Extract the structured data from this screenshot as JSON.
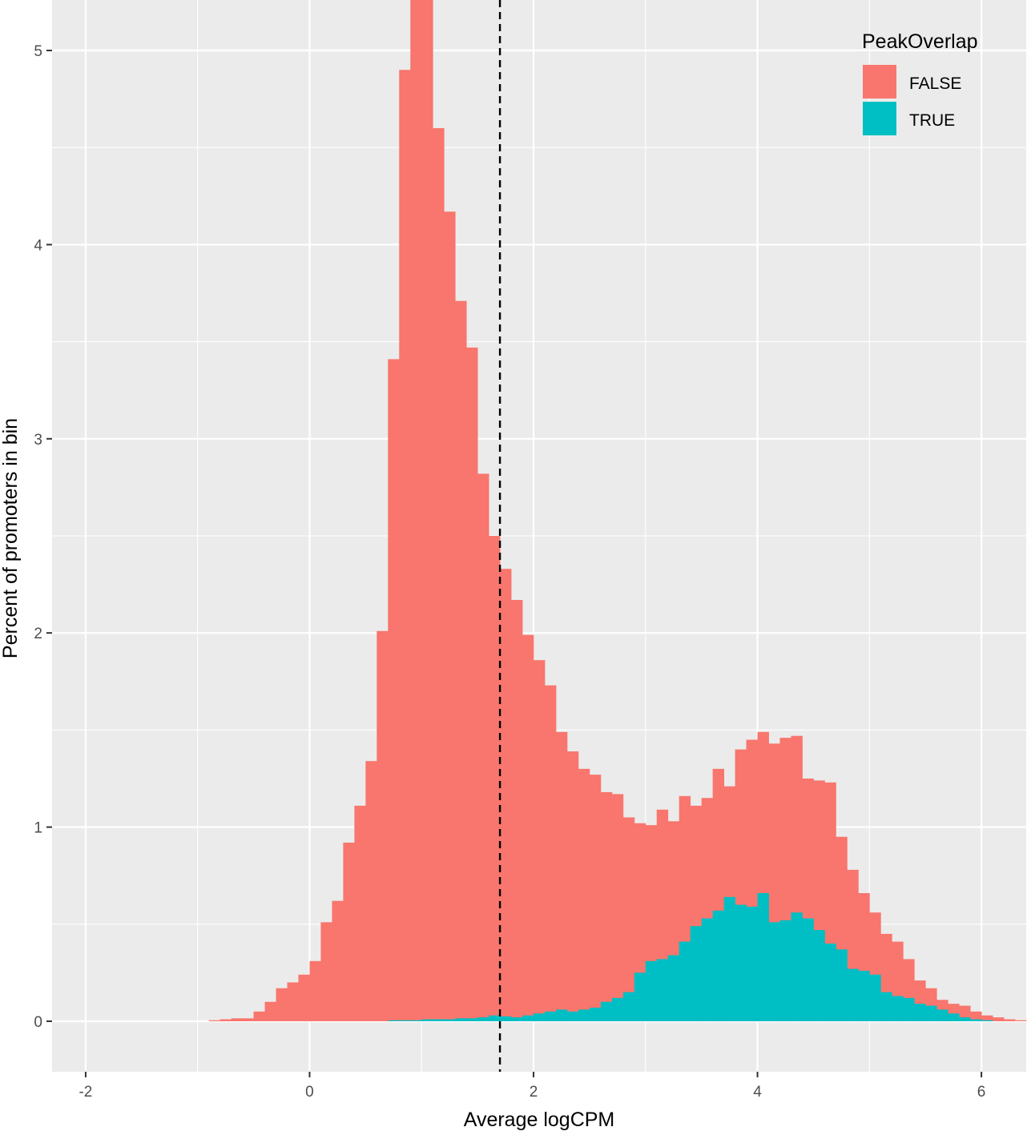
{
  "chart_data": {
    "type": "bar",
    "subtype": "histogram-overlay",
    "xlabel": "Average logCPM",
    "ylabel": "Percent of promoters in bin",
    "xlim": [
      -2.3,
      6.4
    ],
    "ylim": [
      -0.26,
      5.26
    ],
    "xticks": [
      -2,
      0,
      2,
      4,
      6
    ],
    "yticks": [
      0,
      1,
      2,
      3,
      4,
      5
    ],
    "grid": true,
    "bin_start": -0.9,
    "bin_width": 0.1,
    "vline": {
      "x": 1.7,
      "style": "dashed"
    },
    "legend": {
      "title": "PeakOverlap",
      "placement": "top-right"
    },
    "series": [
      {
        "name": "FALSE",
        "color": "#F8766D",
        "values": [
          0.005,
          0.01,
          0.015,
          0.015,
          0.05,
          0.1,
          0.17,
          0.2,
          0.24,
          0.31,
          0.51,
          0.62,
          0.92,
          1.11,
          1.34,
          2.01,
          3.41,
          4.9,
          5.28,
          5.28,
          4.6,
          4.17,
          3.71,
          3.47,
          2.82,
          2.5,
          2.33,
          2.17,
          1.99,
          1.86,
          1.73,
          1.49,
          1.39,
          1.3,
          1.27,
          1.18,
          1.17,
          1.05,
          1.02,
          1.01,
          1.09,
          1.03,
          1.16,
          1.11,
          1.15,
          1.3,
          1.21,
          1.4,
          1.45,
          1.49,
          1.43,
          1.46,
          1.47,
          1.25,
          1.24,
          1.23,
          0.95,
          0.78,
          0.66,
          0.56,
          0.45,
          0.41,
          0.32,
          0.21,
          0.17,
          0.11,
          0.09,
          0.08,
          0.05,
          0.03,
          0.02,
          0.01,
          0.005
        ]
      },
      {
        "name": "TRUE",
        "color": "#00BFC4",
        "values": [
          0,
          0,
          0,
          0,
          0,
          0,
          0,
          0,
          0,
          0,
          0,
          0,
          0,
          0,
          0,
          0,
          0.005,
          0.005,
          0.005,
          0.01,
          0.01,
          0.01,
          0.015,
          0.015,
          0.02,
          0.03,
          0.025,
          0.02,
          0.03,
          0.04,
          0.05,
          0.06,
          0.05,
          0.06,
          0.07,
          0.1,
          0.12,
          0.15,
          0.25,
          0.31,
          0.32,
          0.34,
          0.41,
          0.49,
          0.53,
          0.57,
          0.64,
          0.6,
          0.59,
          0.66,
          0.51,
          0.52,
          0.56,
          0.53,
          0.47,
          0.4,
          0.37,
          0.27,
          0.26,
          0.24,
          0.15,
          0.13,
          0.12,
          0.09,
          0.08,
          0.06,
          0.04,
          0.02,
          0.01,
          0.005,
          0,
          0,
          0
        ]
      }
    ]
  }
}
